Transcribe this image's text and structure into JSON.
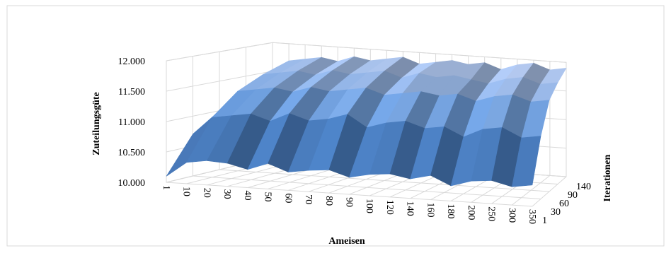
{
  "chart_data": {
    "type": "surface",
    "x_label": "Ameisen",
    "depth_label": "Iterationen",
    "z_label": "Zuteilungsgüte",
    "categories": [
      "1",
      "10",
      "20",
      "30",
      "40",
      "50",
      "60",
      "70",
      "80",
      "90",
      "100",
      "120",
      "140",
      "160",
      "180",
      "200",
      "250",
      "300",
      "350"
    ],
    "series": [
      {
        "name": "1",
        "values": [
          10100,
          10350,
          10400,
          10380,
          10300,
          10420,
          10300,
          10350,
          10380,
          10280,
          10350,
          10380,
          10320,
          10400,
          10250,
          10350,
          10380,
          10300,
          10350
        ]
      },
      {
        "name": "30",
        "values": [
          10700,
          11000,
          11050,
          11100,
          11000,
          11150,
          11050,
          11100,
          11200,
          11000,
          11100,
          11150,
          11050,
          11100,
          10950,
          11100,
          11150,
          11000,
          11050
        ]
      },
      {
        "name": "60",
        "values": [
          11000,
          11350,
          11400,
          11450,
          11400,
          11500,
          11450,
          11500,
          11550,
          11450,
          11500,
          11550,
          11500,
          11550,
          11450,
          11550,
          11600,
          11500,
          11550
        ]
      },
      {
        "name": "90",
        "values": [
          11200,
          11550,
          11600,
          11650,
          11600,
          11700,
          11650,
          11700,
          11750,
          11650,
          11750,
          11700,
          11750,
          11700,
          11650,
          11750,
          11800,
          11700,
          11750
        ]
      },
      {
        "name": "140",
        "values": [
          11400,
          11700,
          11750,
          11800,
          11750,
          11850,
          11800,
          11850,
          11900,
          11800,
          11850,
          11900,
          11850,
          11900,
          11800,
          11900,
          11950,
          11850,
          11900
        ]
      }
    ],
    "zlim": [
      10000,
      12000
    ],
    "zticks": [
      {
        "value": 10000,
        "label": "10.000"
      },
      {
        "value": 10500,
        "label": "10.500"
      },
      {
        "value": 11000,
        "label": "11.000"
      },
      {
        "value": 11500,
        "label": "11.500"
      },
      {
        "value": 12000,
        "label": "12.000"
      }
    ],
    "colors": [
      "#2f4a74",
      "#4a7fc0",
      "#aebbd8"
    ],
    "grid": true
  }
}
